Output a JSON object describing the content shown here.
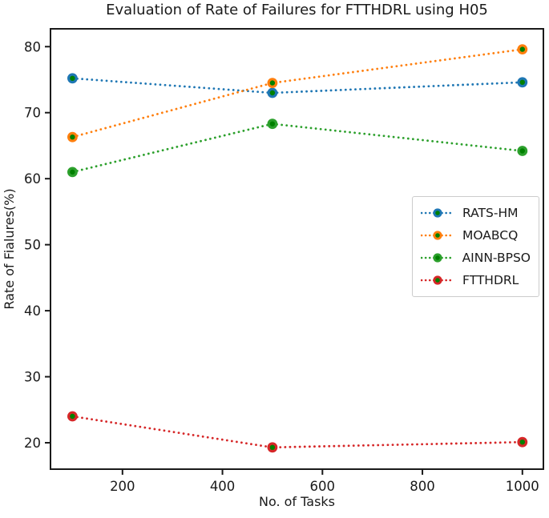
{
  "chart_data": {
    "type": "line",
    "title": "Evaluation of Rate of Failures for FTTHDRL using H05",
    "xlabel": "No. of Tasks",
    "ylabel": "Rate of Fialures(%)",
    "x": [
      100,
      500,
      1000
    ],
    "xticks": [
      200,
      400,
      600,
      800,
      1000
    ],
    "yticks": [
      20,
      30,
      40,
      50,
      60,
      70,
      80
    ],
    "xlim": [
      56,
      1042
    ],
    "ylim": [
      16,
      82.7
    ],
    "grid": false,
    "line_style": "dotted",
    "marker": "circle",
    "marker_face_color": "#008000",
    "frame_color": "#1a1a1a",
    "text_color": "#1a1a1a",
    "legend_position": "center-right",
    "series": [
      {
        "name": "RATS-HM",
        "color": "#1f77b4",
        "values": [
          75.2,
          73.0,
          74.6
        ]
      },
      {
        "name": "MOABCQ",
        "color": "#ff7f0e",
        "values": [
          66.3,
          74.5,
          79.6
        ]
      },
      {
        "name": "AINN-BPSO",
        "color": "#2ca02c",
        "values": [
          61.0,
          68.3,
          64.2
        ]
      },
      {
        "name": "FTTHDRL",
        "color": "#d62728",
        "values": [
          24.0,
          19.3,
          20.1
        ]
      }
    ]
  }
}
